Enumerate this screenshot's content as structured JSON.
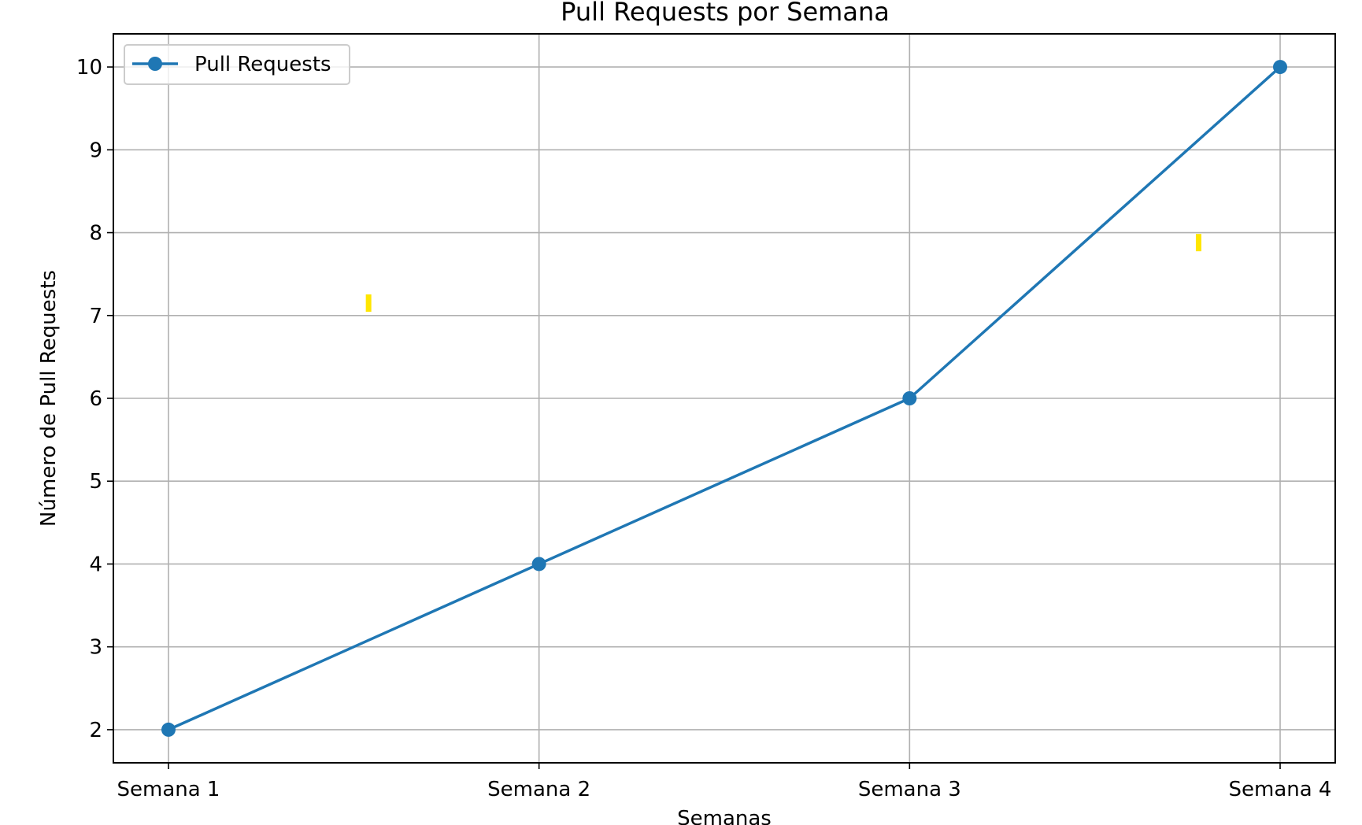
{
  "chart_data": {
    "type": "line",
    "title": "Pull Requests por Semana",
    "xlabel": "Semanas",
    "ylabel": "Número de Pull Requests",
    "categories": [
      "Semana 1",
      "Semana 2",
      "Semana 3",
      "Semana 4"
    ],
    "series": [
      {
        "name": "Pull Requests",
        "values": [
          2,
          4,
          6,
          10
        ],
        "color": "#1f77b4",
        "marker": "circle"
      }
    ],
    "ylim": [
      1.6,
      10.4
    ],
    "yticks": [
      2,
      3,
      4,
      5,
      6,
      7,
      8,
      9,
      10
    ],
    "grid": true,
    "legend_position": "top-left",
    "grid_color": "#b0b0b0",
    "annotation_color": "#ffe600"
  }
}
